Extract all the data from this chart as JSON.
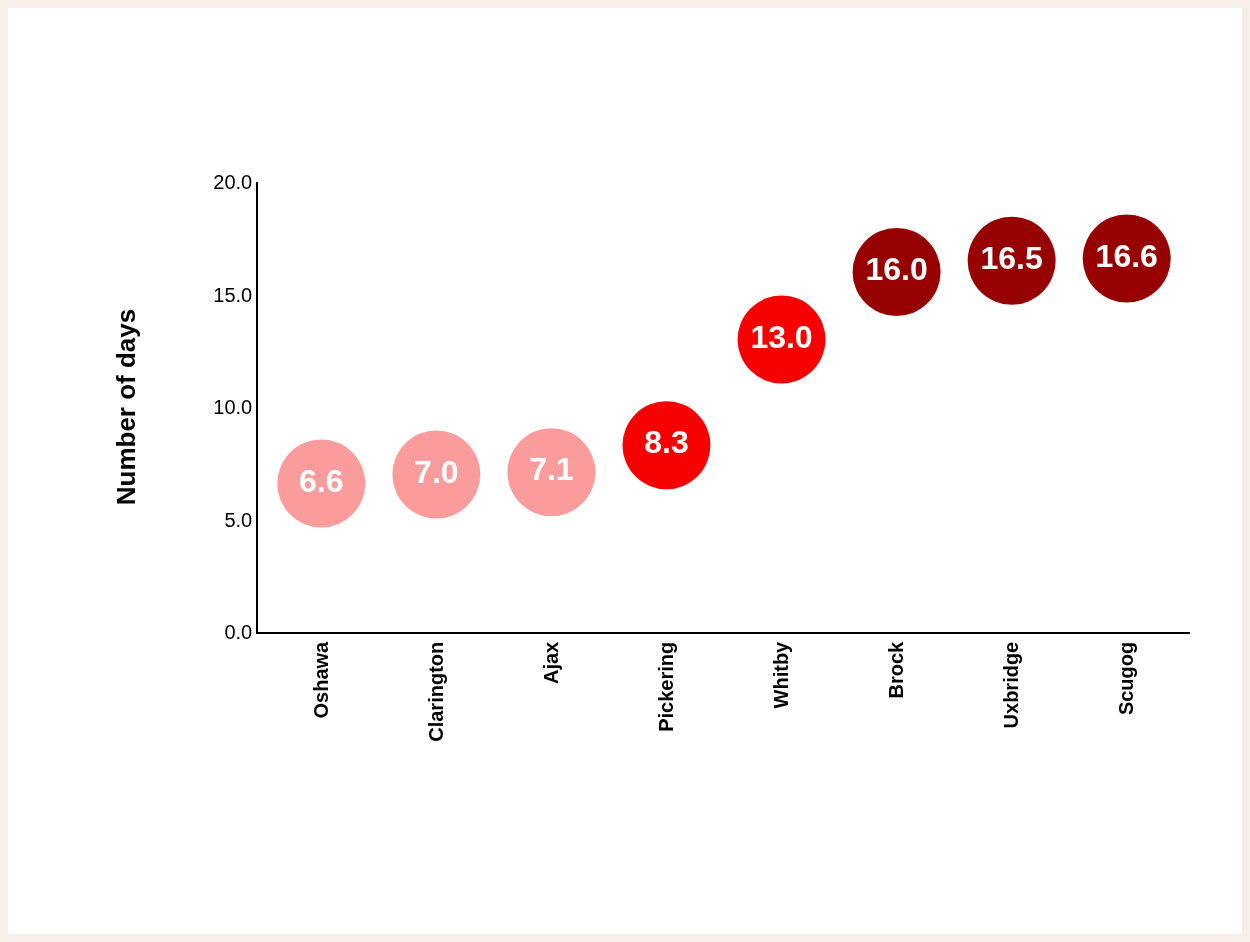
{
  "chart_data": {
    "type": "scatter",
    "ylabel": "Number of days",
    "categories": [
      "Oshawa",
      "Clarington",
      "Ajax",
      "Pickering",
      "Whitby",
      "Brock",
      "Uxbridge",
      "Scugog"
    ],
    "values": [
      6.6,
      7.0,
      7.1,
      8.3,
      13.0,
      16.0,
      16.5,
      16.6
    ],
    "colors": [
      "#fa9c9c",
      "#fa9c9c",
      "#fa9c9c",
      "#f70000",
      "#f70000",
      "#960000",
      "#960000",
      "#960000"
    ],
    "value_labels": [
      "6.6",
      "7.0",
      "7.1",
      "8.3",
      "13.0",
      "16.0",
      "16.5",
      "16.6"
    ],
    "ylim": [
      0,
      20
    ],
    "yticks": [
      {
        "value": 0,
        "label": "0.0"
      },
      {
        "value": 5,
        "label": "5.0"
      },
      {
        "value": 10,
        "label": "10.0"
      },
      {
        "value": 15,
        "label": "15.0"
      },
      {
        "value": 20,
        "label": "20.0"
      }
    ],
    "grid": false,
    "marker": "circle"
  }
}
